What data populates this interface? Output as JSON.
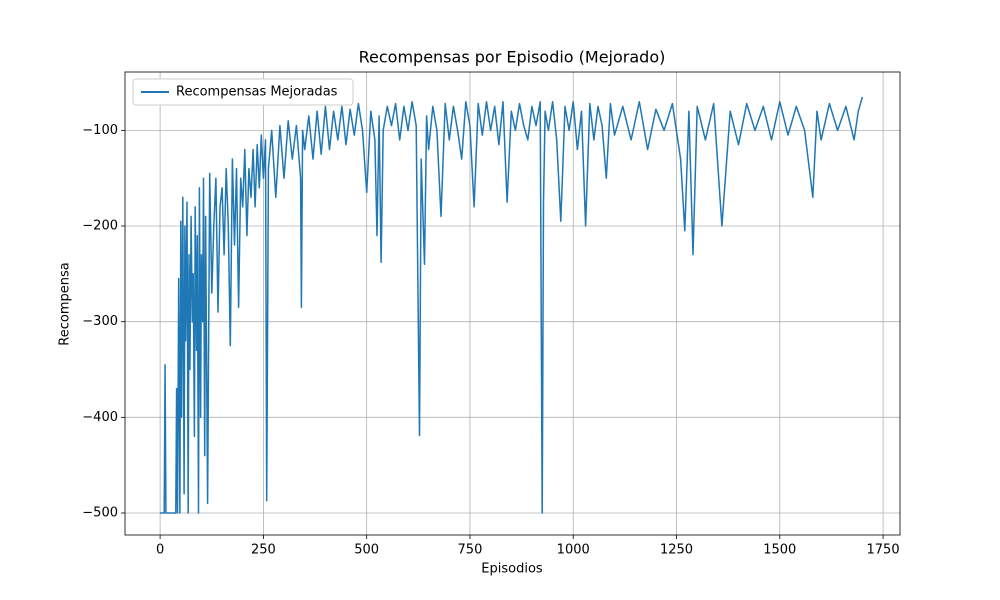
{
  "chart_data": {
    "type": "line",
    "title": "Recompensas por Episodio (Mejorado)",
    "x_label": "Episodios",
    "y_label": "Recompensa",
    "legend": "upper left",
    "grid": true,
    "xlim": [
      -85,
      1791
    ],
    "ylim": [
      -523,
      -39
    ],
    "xticks": [
      0,
      250,
      500,
      750,
      1000,
      1250,
      1500,
      1750
    ],
    "yticks": [
      {
        "value": -500,
        "label": "−500"
      },
      {
        "value": -400,
        "label": "−400"
      },
      {
        "value": -300,
        "label": "−300"
      },
      {
        "value": -200,
        "label": "−200"
      },
      {
        "value": -100,
        "label": "−100"
      }
    ],
    "x": [
      0,
      5,
      10,
      12,
      14,
      20,
      30,
      38,
      40,
      42,
      45,
      48,
      50,
      52,
      55,
      58,
      60,
      62,
      65,
      68,
      70,
      72,
      75,
      78,
      80,
      83,
      85,
      88,
      90,
      93,
      95,
      98,
      100,
      103,
      105,
      108,
      110,
      115,
      120,
      125,
      130,
      135,
      140,
      145,
      150,
      155,
      160,
      165,
      170,
      175,
      180,
      185,
      190,
      195,
      200,
      205,
      210,
      215,
      220,
      225,
      230,
      235,
      240,
      245,
      250,
      255,
      258,
      262,
      270,
      280,
      290,
      300,
      310,
      320,
      330,
      340,
      342,
      345,
      350,
      360,
      370,
      380,
      390,
      400,
      410,
      420,
      430,
      440,
      450,
      460,
      470,
      480,
      490,
      500,
      510,
      520,
      525,
      530,
      535,
      540,
      550,
      560,
      570,
      580,
      590,
      600,
      610,
      620,
      628,
      632,
      640,
      645,
      650,
      660,
      670,
      680,
      690,
      700,
      710,
      720,
      730,
      740,
      750,
      760,
      770,
      780,
      790,
      800,
      810,
      820,
      830,
      840,
      850,
      860,
      870,
      880,
      890,
      900,
      910,
      920,
      925,
      928,
      932,
      940,
      950,
      960,
      970,
      980,
      990,
      1000,
      1010,
      1020,
      1030,
      1040,
      1050,
      1060,
      1070,
      1080,
      1090,
      1100,
      1120,
      1140,
      1160,
      1180,
      1200,
      1220,
      1240,
      1260,
      1270,
      1280,
      1290,
      1300,
      1320,
      1340,
      1360,
      1380,
      1400,
      1420,
      1440,
      1460,
      1480,
      1500,
      1520,
      1540,
      1560,
      1580,
      1590,
      1600,
      1620,
      1640,
      1660,
      1680,
      1690,
      1700
    ],
    "series": [
      {
        "name": "Recompensas Mejoradas",
        "color": "#1f77b4",
        "values": [
          -500,
          -500,
          -500,
          -345,
          -500,
          -500,
          -500,
          -500,
          -370,
          -500,
          -255,
          -500,
          -195,
          -400,
          -170,
          -480,
          -200,
          -320,
          -175,
          -500,
          -230,
          -350,
          -190,
          -300,
          -250,
          -420,
          -180,
          -330,
          -210,
          -500,
          -160,
          -400,
          -230,
          -300,
          -150,
          -440,
          -190,
          -490,
          -145,
          -270,
          -200,
          -150,
          -290,
          -180,
          -160,
          -230,
          -140,
          -200,
          -325,
          -130,
          -220,
          -140,
          -285,
          -150,
          -180,
          -120,
          -210,
          -140,
          -170,
          -120,
          -180,
          -115,
          -160,
          -105,
          -150,
          -110,
          -487,
          -140,
          -100,
          -170,
          -95,
          -150,
          -90,
          -130,
          -95,
          -150,
          -285,
          -100,
          -120,
          -85,
          -130,
          -80,
          -125,
          -75,
          -120,
          -80,
          -110,
          -75,
          -115,
          -78,
          -105,
          -72,
          -100,
          -165,
          -80,
          -110,
          -210,
          -85,
          -238,
          -100,
          -75,
          -95,
          -72,
          -110,
          -75,
          -100,
          -70,
          -95,
          -419,
          -130,
          -240,
          -85,
          -120,
          -75,
          -100,
          -190,
          -72,
          -110,
          -75,
          -100,
          -130,
          -70,
          -95,
          -180,
          -72,
          -105,
          -70,
          -100,
          -75,
          -115,
          -70,
          -175,
          -80,
          -100,
          -72,
          -95,
          -110,
          -75,
          -95,
          -70,
          -500,
          -175,
          -80,
          -100,
          -70,
          -110,
          -195,
          -75,
          -100,
          -70,
          -120,
          -80,
          -200,
          -72,
          -110,
          -75,
          -95,
          -150,
          -72,
          -105,
          -75,
          -110,
          -70,
          -120,
          -78,
          -100,
          -72,
          -130,
          -205,
          -80,
          -230,
          -75,
          -110,
          -72,
          -200,
          -80,
          -115,
          -72,
          -100,
          -75,
          -110,
          -70,
          -105,
          -75,
          -100,
          -170,
          -80,
          -110,
          -72,
          -100,
          -75,
          -110,
          -80,
          -65
        ]
      }
    ]
  }
}
